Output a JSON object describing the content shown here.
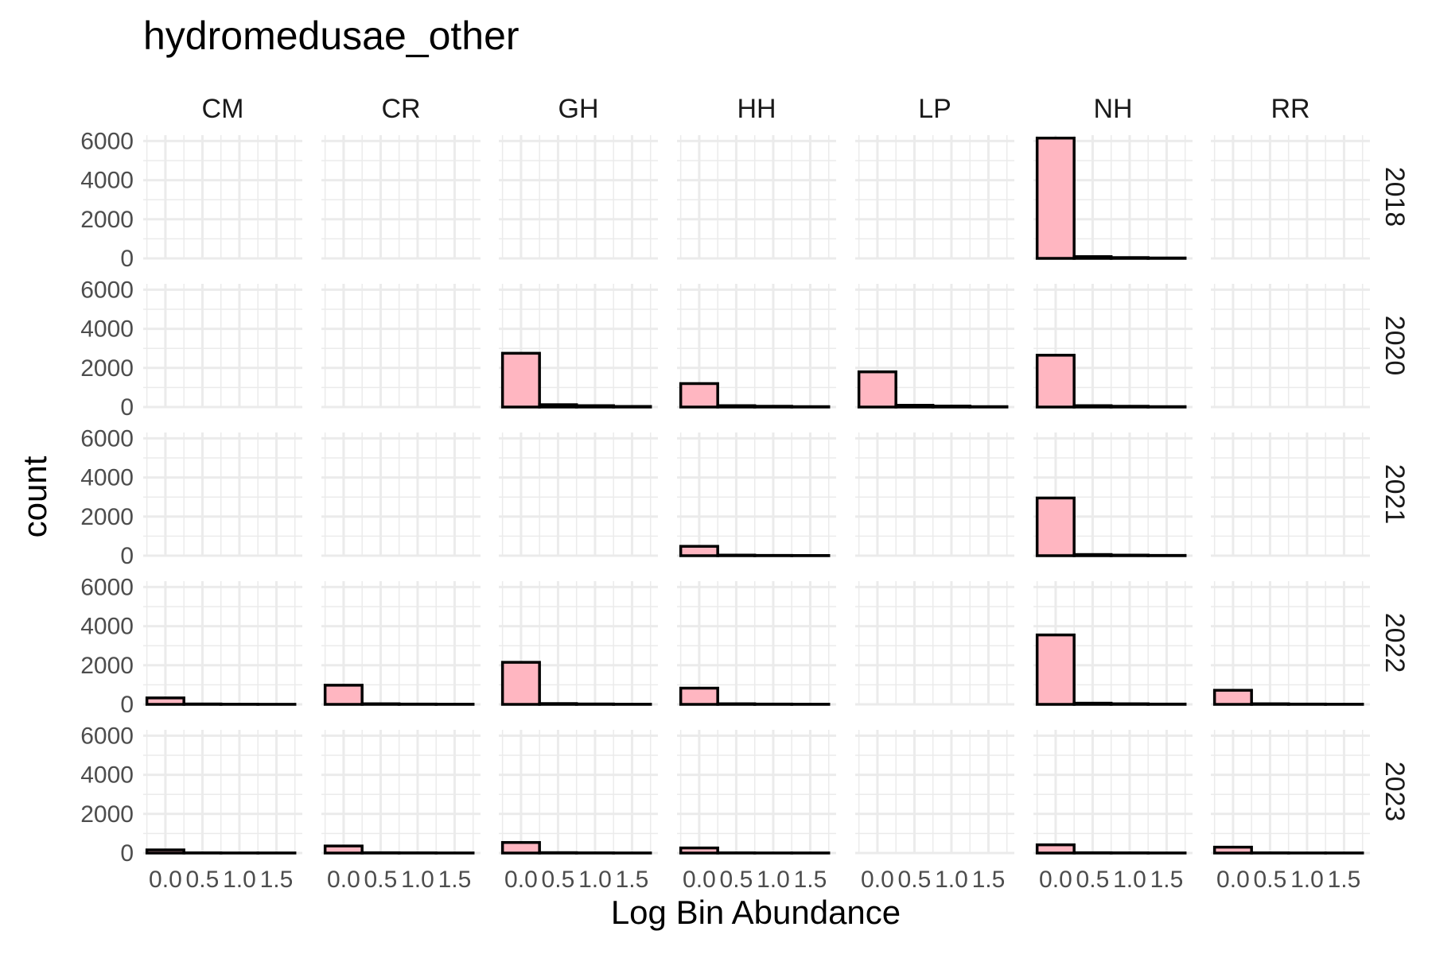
{
  "chart_data": {
    "type": "bar",
    "subtype": "faceted-histogram",
    "title": "hydromedusae_other",
    "xlabel": "Log Bin Abundance",
    "ylabel": "count",
    "x_ticks": [
      0.0,
      0.5,
      1.0,
      1.5
    ],
    "x_tick_labels": [
      "0.0",
      "0.5",
      "1.0",
      "1.5"
    ],
    "xlim": [
      -0.3,
      1.85
    ],
    "bin_width": 0.5,
    "bin_centers": [
      0.0,
      0.5,
      1.0,
      1.5
    ],
    "y_ticks": [
      0,
      2000,
      4000,
      6000
    ],
    "y_tick_labels": [
      "0",
      "2000",
      "4000",
      "6000"
    ],
    "ylim": [
      0,
      6300
    ],
    "bar_fill": "#ffb6c1",
    "bar_outline": "#000000",
    "grid": true,
    "columns": [
      "CM",
      "CR",
      "GH",
      "HH",
      "LP",
      "NH",
      "RR"
    ],
    "rows": [
      "2018",
      "2020",
      "2021",
      "2022",
      "2023"
    ],
    "panels": [
      {
        "row": "2018",
        "col": "NH",
        "counts": [
          6150,
          90,
          40,
          20
        ]
      },
      {
        "row": "2020",
        "col": "GH",
        "counts": [
          2750,
          120,
          70,
          30
        ]
      },
      {
        "row": "2020",
        "col": "HH",
        "counts": [
          1200,
          70,
          40,
          20
        ]
      },
      {
        "row": "2020",
        "col": "LP",
        "counts": [
          1800,
          90,
          50,
          20
        ]
      },
      {
        "row": "2020",
        "col": "NH",
        "counts": [
          2650,
          70,
          40,
          20
        ]
      },
      {
        "row": "2021",
        "col": "HH",
        "counts": [
          480,
          30,
          15,
          10
        ]
      },
      {
        "row": "2021",
        "col": "NH",
        "counts": [
          2950,
          60,
          30,
          15
        ]
      },
      {
        "row": "2022",
        "col": "CM",
        "counts": [
          330,
          20,
          10,
          5
        ]
      },
      {
        "row": "2022",
        "col": "CR",
        "counts": [
          980,
          30,
          15,
          10
        ]
      },
      {
        "row": "2022",
        "col": "GH",
        "counts": [
          2150,
          40,
          20,
          10
        ]
      },
      {
        "row": "2022",
        "col": "HH",
        "counts": [
          830,
          30,
          15,
          10
        ]
      },
      {
        "row": "2022",
        "col": "NH",
        "counts": [
          3550,
          60,
          30,
          15
        ]
      },
      {
        "row": "2022",
        "col": "RR",
        "counts": [
          720,
          30,
          15,
          10
        ]
      },
      {
        "row": "2023",
        "col": "CM",
        "counts": [
          160,
          10,
          5,
          5
        ]
      },
      {
        "row": "2023",
        "col": "CR",
        "counts": [
          360,
          15,
          10,
          5
        ]
      },
      {
        "row": "2023",
        "col": "GH",
        "counts": [
          540,
          20,
          10,
          5
        ]
      },
      {
        "row": "2023",
        "col": "HH",
        "counts": [
          260,
          10,
          5,
          5
        ]
      },
      {
        "row": "2023",
        "col": "NH",
        "counts": [
          420,
          15,
          10,
          5
        ]
      },
      {
        "row": "2023",
        "col": "RR",
        "counts": [
          300,
          10,
          5,
          5
        ]
      }
    ]
  }
}
